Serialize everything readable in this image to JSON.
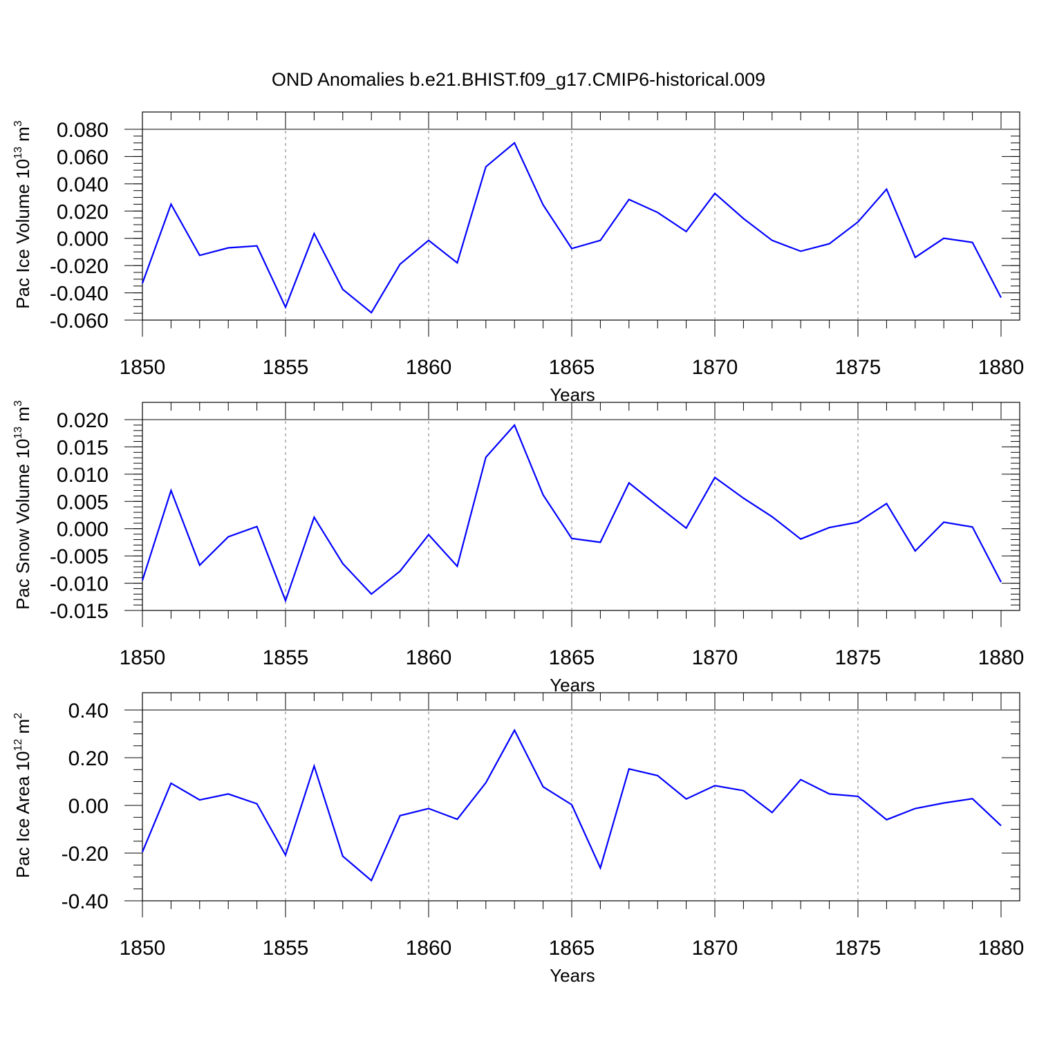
{
  "title": "OND Anomalies b.e21.BHIST.f09_g17.CMIP6-historical.009",
  "chart_data": [
    {
      "type": "line",
      "xlabel": "Years",
      "ylabel_main": "Pac Ice Volume 10",
      "ylabel_exp": "13",
      "ylabel_unit": " m",
      "ylabel_unit_exp": "3",
      "xlim": [
        1850,
        1880
      ],
      "ylim": [
        -0.06,
        0.08
      ],
      "xticks": [
        1850,
        1855,
        1860,
        1865,
        1870,
        1875,
        1880
      ],
      "xtick_labels": [
        "1850",
        "1855",
        "1860",
        "1865",
        "1870",
        "1875",
        "1880"
      ],
      "yticks": [
        -0.06,
        -0.04,
        -0.02,
        0.0,
        0.02,
        0.04,
        0.06,
        0.08
      ],
      "ytick_labels": [
        "-0.060",
        "-0.040",
        "-0.020",
        "0.000",
        "0.020",
        "0.040",
        "0.060",
        "0.080"
      ],
      "y_minor_step": 0.005,
      "vgrid": [
        1855,
        1860,
        1865,
        1870,
        1875
      ],
      "line_color": "#0000ff",
      "x": [
        1850,
        1851,
        1852,
        1853,
        1854,
        1855,
        1856,
        1857,
        1858,
        1859,
        1860,
        1861,
        1862,
        1863,
        1864,
        1865,
        1866,
        1867,
        1868,
        1869,
        1870,
        1871,
        1872,
        1873,
        1874,
        1875,
        1876,
        1877,
        1878,
        1879,
        1880
      ],
      "values": [
        -0.033,
        0.025,
        -0.0125,
        -0.007,
        -0.0055,
        -0.0505,
        0.0035,
        -0.0375,
        -0.0545,
        -0.019,
        -0.0015,
        -0.018,
        0.0525,
        0.07,
        0.0245,
        -0.0075,
        -0.0015,
        0.0285,
        0.019,
        0.005,
        0.033,
        0.0145,
        -0.0015,
        -0.0095,
        -0.004,
        0.012,
        0.036,
        -0.014,
        0.0,
        -0.003,
        -0.0435
      ]
    },
    {
      "type": "line",
      "xlabel": "Years",
      "ylabel_main": "Pac Snow Volume 10",
      "ylabel_exp": "13",
      "ylabel_unit": " m",
      "ylabel_unit_exp": "3",
      "xlim": [
        1850,
        1880
      ],
      "ylim": [
        -0.015,
        0.02
      ],
      "xticks": [
        1850,
        1855,
        1860,
        1865,
        1870,
        1875,
        1880
      ],
      "xtick_labels": [
        "1850",
        "1855",
        "1860",
        "1865",
        "1870",
        "1875",
        "1880"
      ],
      "yticks": [
        -0.015,
        -0.01,
        -0.005,
        0.0,
        0.005,
        0.01,
        0.015,
        0.02
      ],
      "ytick_labels": [
        "-0.015",
        "-0.010",
        "-0.005",
        "0.000",
        "0.005",
        "0.010",
        "0.015",
        "0.020"
      ],
      "y_minor_step": 0.001,
      "vgrid": [
        1855,
        1860,
        1865,
        1870,
        1875
      ],
      "line_color": "#0000ff",
      "x": [
        1850,
        1851,
        1852,
        1853,
        1854,
        1855,
        1856,
        1857,
        1858,
        1859,
        1860,
        1861,
        1862,
        1863,
        1864,
        1865,
        1866,
        1867,
        1868,
        1869,
        1870,
        1871,
        1872,
        1873,
        1874,
        1875,
        1876,
        1877,
        1878,
        1879,
        1880
      ],
      "values": [
        -0.0095,
        0.007,
        -0.0067,
        -0.0015,
        0.0004,
        -0.0132,
        0.0021,
        -0.0064,
        -0.012,
        -0.0078,
        -0.0011,
        -0.0069,
        0.0131,
        0.019,
        0.0062,
        -0.0018,
        -0.0025,
        0.0084,
        0.0042,
        0.0001,
        0.0094,
        0.0056,
        0.0022,
        -0.0019,
        0.0002,
        0.0012,
        0.0046,
        -0.0041,
        0.0012,
        0.0003,
        -0.0098
      ]
    },
    {
      "type": "line",
      "xlabel": "Years",
      "ylabel_main": "Pac Ice Area 10",
      "ylabel_exp": "12",
      "ylabel_unit": " m",
      "ylabel_unit_exp": "2",
      "xlim": [
        1850,
        1880
      ],
      "ylim": [
        -0.4,
        0.4
      ],
      "xticks": [
        1850,
        1855,
        1860,
        1865,
        1870,
        1875,
        1880
      ],
      "xtick_labels": [
        "1850",
        "1855",
        "1860",
        "1865",
        "1870",
        "1875",
        "1880"
      ],
      "yticks": [
        -0.4,
        -0.2,
        0.0,
        0.2,
        0.4
      ],
      "ytick_labels": [
        "-0.40",
        "-0.20",
        "0.00",
        "0.20",
        "0.40"
      ],
      "y_minor_step": 0.05,
      "vgrid": [
        1855,
        1860,
        1865,
        1870,
        1875
      ],
      "line_color": "#0000ff",
      "x": [
        1850,
        1851,
        1852,
        1853,
        1854,
        1855,
        1856,
        1857,
        1858,
        1859,
        1860,
        1861,
        1862,
        1863,
        1864,
        1865,
        1866,
        1867,
        1868,
        1869,
        1870,
        1871,
        1872,
        1873,
        1874,
        1875,
        1876,
        1877,
        1878,
        1879,
        1880
      ],
      "values": [
        -0.195,
        0.093,
        0.023,
        0.048,
        0.007,
        -0.208,
        0.165,
        -0.213,
        -0.315,
        -0.043,
        -0.013,
        -0.058,
        0.095,
        0.315,
        0.078,
        0.003,
        -0.262,
        0.153,
        0.125,
        0.027,
        0.083,
        0.062,
        -0.03,
        0.108,
        0.048,
        0.038,
        -0.06,
        -0.013,
        0.01,
        0.028,
        -0.085
      ]
    }
  ]
}
